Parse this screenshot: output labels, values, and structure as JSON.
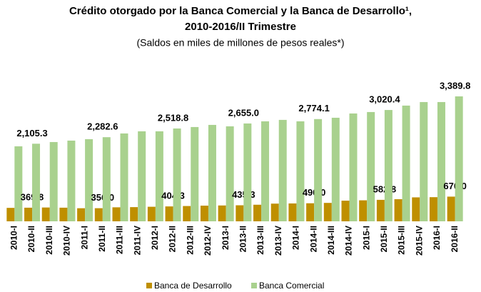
{
  "chart_data": {
    "type": "bar",
    "title": [
      "Crédito otorgado por la Banca Comercial y la Banca de Desarrollo¹,",
      "2010-2016/II Trimestre"
    ],
    "subtitle": "(Saldos en miles de millones de pesos reales*)",
    "categories": [
      "2010-I",
      "2010-II",
      "2010-III",
      "2010-IV",
      "2011-I",
      "2011-II",
      "2011-III",
      "2011-IV",
      "2012-I",
      "2012-II",
      "2012-III",
      "2012-IV",
      "2013-I",
      "2013-II",
      "2013-III",
      "2013-IV",
      "2014-I",
      "2014-II",
      "2014-III",
      "2014-IV",
      "2015-I",
      "2015-II",
      "2015-III",
      "2015-IV",
      "2016-I",
      "2016-II"
    ],
    "series": [
      {
        "name": "Banca de Desarrollo",
        "color": "#bf8f00",
        "values": [
          365,
          369.8,
          375,
          370,
          355,
          356.0,
          380,
          385,
          395,
          404.3,
          415,
          425,
          430,
          435.3,
          450,
          480,
          485,
          490.0,
          500,
          560,
          570,
          582.8,
          600,
          650,
          655,
          670.0
        ],
        "value_labels": [
          null,
          "369.8",
          null,
          null,
          null,
          "356.0",
          null,
          null,
          null,
          "404.3",
          null,
          null,
          null,
          "435.3",
          null,
          null,
          null,
          "490.0",
          null,
          null,
          null,
          "582.8",
          null,
          null,
          null,
          "670.0"
        ]
      },
      {
        "name": "Banca Comercial",
        "color": "#a9d18e",
        "values": [
          2035,
          2105.3,
          2151,
          2190,
          2229,
          2282.6,
          2384,
          2442,
          2442,
          2518.8,
          2558,
          2616,
          2577,
          2655.0,
          2713,
          2752,
          2713,
          2774.1,
          2810,
          2926,
          2965,
          3020.4,
          3140,
          3236,
          3236,
          3389.8
        ],
        "value_labels": [
          null,
          "2,105.3",
          null,
          null,
          null,
          "2,282.6",
          null,
          null,
          null,
          "2,518.8",
          null,
          null,
          null,
          "2,655.0",
          null,
          null,
          null,
          "2,774.1",
          null,
          null,
          null,
          "3,020.4",
          null,
          null,
          null,
          "3,389.8"
        ]
      }
    ]
  }
}
